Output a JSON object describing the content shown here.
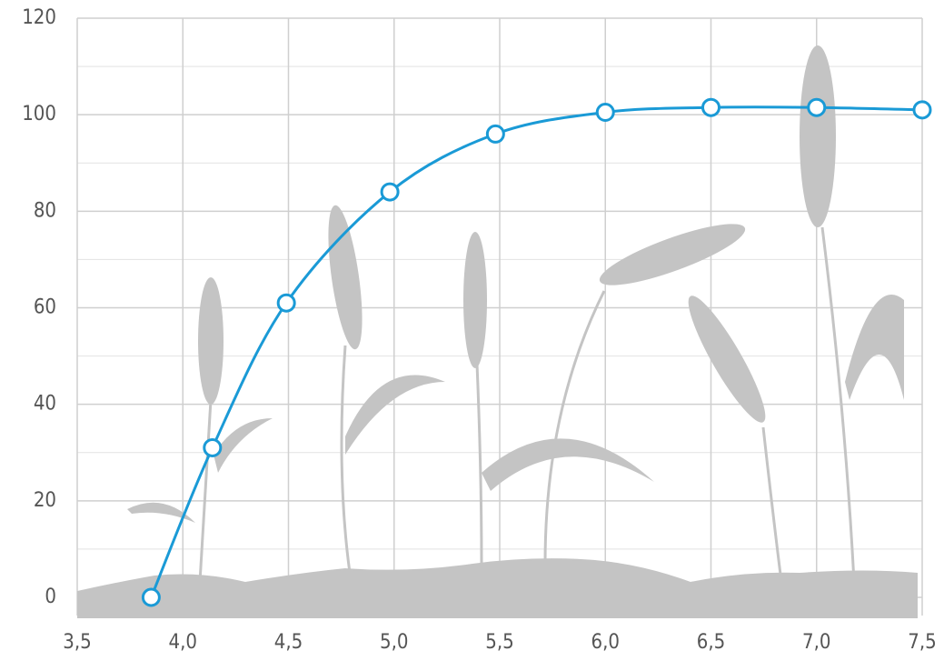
{
  "chart_data": {
    "type": "line",
    "x": [
      3.85,
      4.14,
      4.49,
      4.98,
      5.48,
      6.0,
      6.5,
      7.0,
      7.5
    ],
    "series": [
      {
        "color": "#1a9ad6",
        "values": [
          0,
          31,
          61,
          84,
          96,
          100.5,
          101.5,
          101.5,
          101
        ]
      }
    ],
    "xlim": [
      3.5,
      7.5
    ],
    "xticks": [
      {
        "value": 3.5,
        "label": "3,5"
      },
      {
        "value": 4.0,
        "label": "4,0"
      },
      {
        "value": 4.5,
        "label": "4,5"
      },
      {
        "value": 5.0,
        "label": "5,0"
      },
      {
        "value": 5.5,
        "label": "5,5"
      },
      {
        "value": 6.0,
        "label": "6,0"
      },
      {
        "value": 6.5,
        "label": "6,5"
      },
      {
        "value": 7.0,
        "label": "7,0"
      },
      {
        "value": 7.5,
        "label": "7,5"
      }
    ],
    "ylim": [
      0,
      120
    ],
    "yticks": [
      0,
      20,
      40,
      60,
      80,
      100,
      120
    ],
    "y_minor_ticks": [
      10,
      30,
      50,
      70,
      90,
      110
    ],
    "grid": true
  }
}
